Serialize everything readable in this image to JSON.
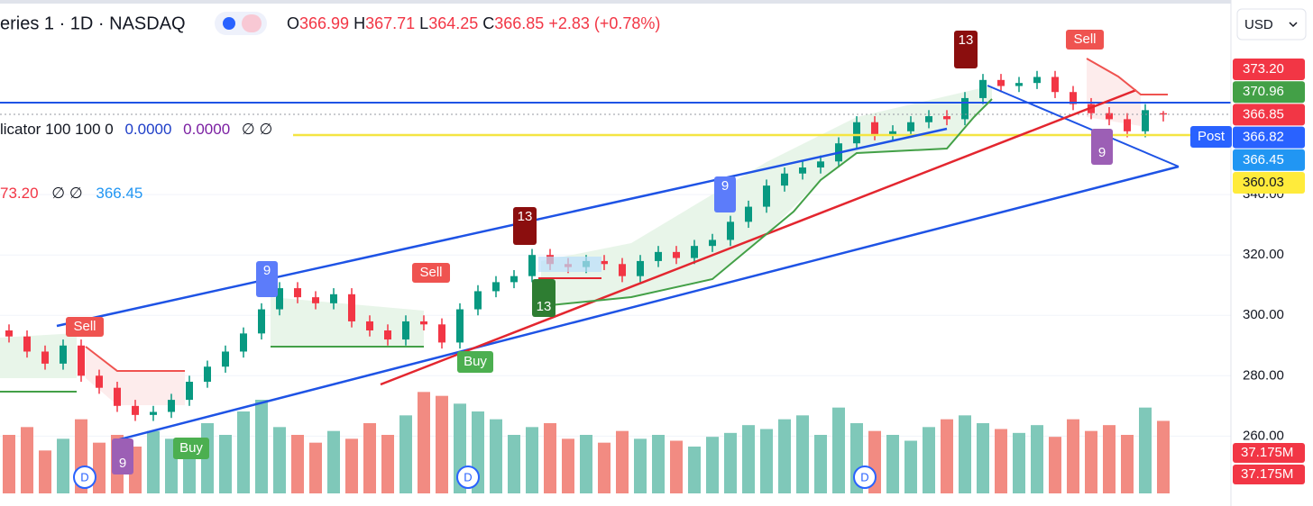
{
  "chart_data": {
    "type": "candlestick",
    "symbol": "eries 1 · 1D · NASDAQ",
    "change": "+2.83 (+0.78%)",
    "ohlc_keys": [
      "O",
      "H",
      "L",
      "C"
    ],
    "currency": "USD",
    "indicator_1": {
      "name": "licator 100 100 0",
      "v1": "0.0000",
      "v2": "0.0000",
      "tail": "∅ ∅"
    },
    "indicator_2": {
      "v1": "73.20",
      "mid": "∅ ∅",
      "v2": "366.45"
    },
    "up_color": "#089981",
    "down_color": "#f23645",
    "open": [
      295,
      293,
      288,
      284,
      290,
      280,
      276,
      270,
      267,
      268,
      272,
      278,
      283,
      288,
      294,
      302,
      309,
      306,
      304,
      307,
      298,
      295,
      292,
      298,
      297,
      291,
      302,
      308,
      311,
      313,
      320,
      317,
      316,
      318,
      317,
      313,
      318,
      321,
      319,
      323,
      325,
      331,
      336,
      343,
      347,
      349,
      351,
      357,
      364,
      360,
      361,
      364,
      366,
      365,
      372,
      378,
      376,
      377,
      379,
      374,
      370,
      367,
      365,
      361,
      366.99
    ],
    "high": [
      297,
      295,
      290,
      292,
      292,
      282,
      278,
      272,
      270,
      274,
      280,
      285,
      290,
      296,
      304,
      311,
      311,
      308,
      309,
      309,
      300,
      297,
      300,
      300,
      299,
      304,
      310,
      313,
      315,
      322,
      322,
      319,
      320,
      320,
      319,
      320,
      323,
      323,
      325,
      327,
      333,
      338,
      345,
      349,
      351,
      353,
      359,
      366,
      366,
      363,
      366,
      368,
      368,
      374,
      380,
      380,
      379,
      381,
      381,
      376,
      372,
      369,
      367,
      370,
      367.71
    ],
    "low": [
      291,
      286,
      282,
      282,
      278,
      274,
      268,
      265,
      265,
      266,
      270,
      276,
      281,
      286,
      292,
      300,
      304,
      302,
      302,
      296,
      293,
      290,
      290,
      295,
      289,
      289,
      300,
      306,
      309,
      311,
      315,
      314,
      314,
      315,
      311,
      311,
      316,
      317,
      317,
      321,
      323,
      329,
      334,
      341,
      345,
      347,
      349,
      355,
      358,
      358,
      359,
      362,
      363,
      363,
      370,
      374,
      374,
      375,
      372,
      368,
      365,
      363,
      359,
      359,
      364.25
    ],
    "close": [
      293,
      288,
      284,
      290,
      280,
      276,
      270,
      267,
      268,
      272,
      278,
      283,
      288,
      294,
      302,
      309,
      306,
      304,
      307,
      298,
      295,
      292,
      298,
      297,
      291,
      302,
      308,
      311,
      313,
      320,
      317,
      316,
      318,
      317,
      313,
      318,
      321,
      319,
      323,
      325,
      331,
      336,
      343,
      347,
      349,
      351,
      357,
      364,
      360,
      361,
      364,
      366,
      365,
      372,
      378,
      376,
      377,
      379,
      374,
      370,
      367,
      365,
      361,
      368,
      366.85
    ],
    "volume": [
      30,
      34,
      22,
      28,
      38,
      26,
      30,
      24,
      32,
      28,
      26,
      36,
      30,
      42,
      48,
      34,
      30,
      26,
      32,
      28,
      36,
      30,
      40,
      52,
      50,
      46,
      42,
      38,
      30,
      34,
      36,
      28,
      30,
      26,
      32,
      28,
      30,
      27,
      24,
      29,
      31,
      35,
      33,
      38,
      40,
      30,
      44,
      36,
      32,
      30,
      27,
      34,
      38,
      40,
      36,
      33,
      31,
      35,
      29,
      38,
      32,
      35,
      30,
      44,
      37.175
    ],
    "volume_label": "37.175M",
    "vol_ylim": [
      0,
      60
    ],
    "ylim": [
      241,
      404.5
    ],
    "yticks": [
      {
        "value": 260,
        "label": "260.00"
      },
      {
        "value": 280,
        "label": "280.00"
      },
      {
        "value": 300,
        "label": "300.00"
      },
      {
        "value": 320,
        "label": "320.00"
      },
      {
        "value": 340,
        "label": "340.00"
      }
    ],
    "price_badges": [
      {
        "value": 373.2,
        "label": "373.20",
        "color": "#f23645"
      },
      {
        "value": 370.96,
        "label": "370.96",
        "color": "#43a047"
      },
      {
        "value": 366.85,
        "label": "366.85",
        "color": "#f23645"
      },
      {
        "value": 366.82,
        "label": "366.82",
        "color": "#2962ff"
      },
      {
        "value": 366.45,
        "label": "366.45",
        "color": "#2196f3"
      },
      {
        "value": 360.03,
        "label": "360.03",
        "color": "#ffeb3b"
      }
    ],
    "post_label": "Post",
    "signals": [
      "Sell",
      "Sell",
      "Sell",
      "Buy",
      "Buy",
      "9",
      "9",
      "9",
      "9",
      "13",
      "13",
      "13",
      "D",
      "D",
      "D"
    ]
  }
}
